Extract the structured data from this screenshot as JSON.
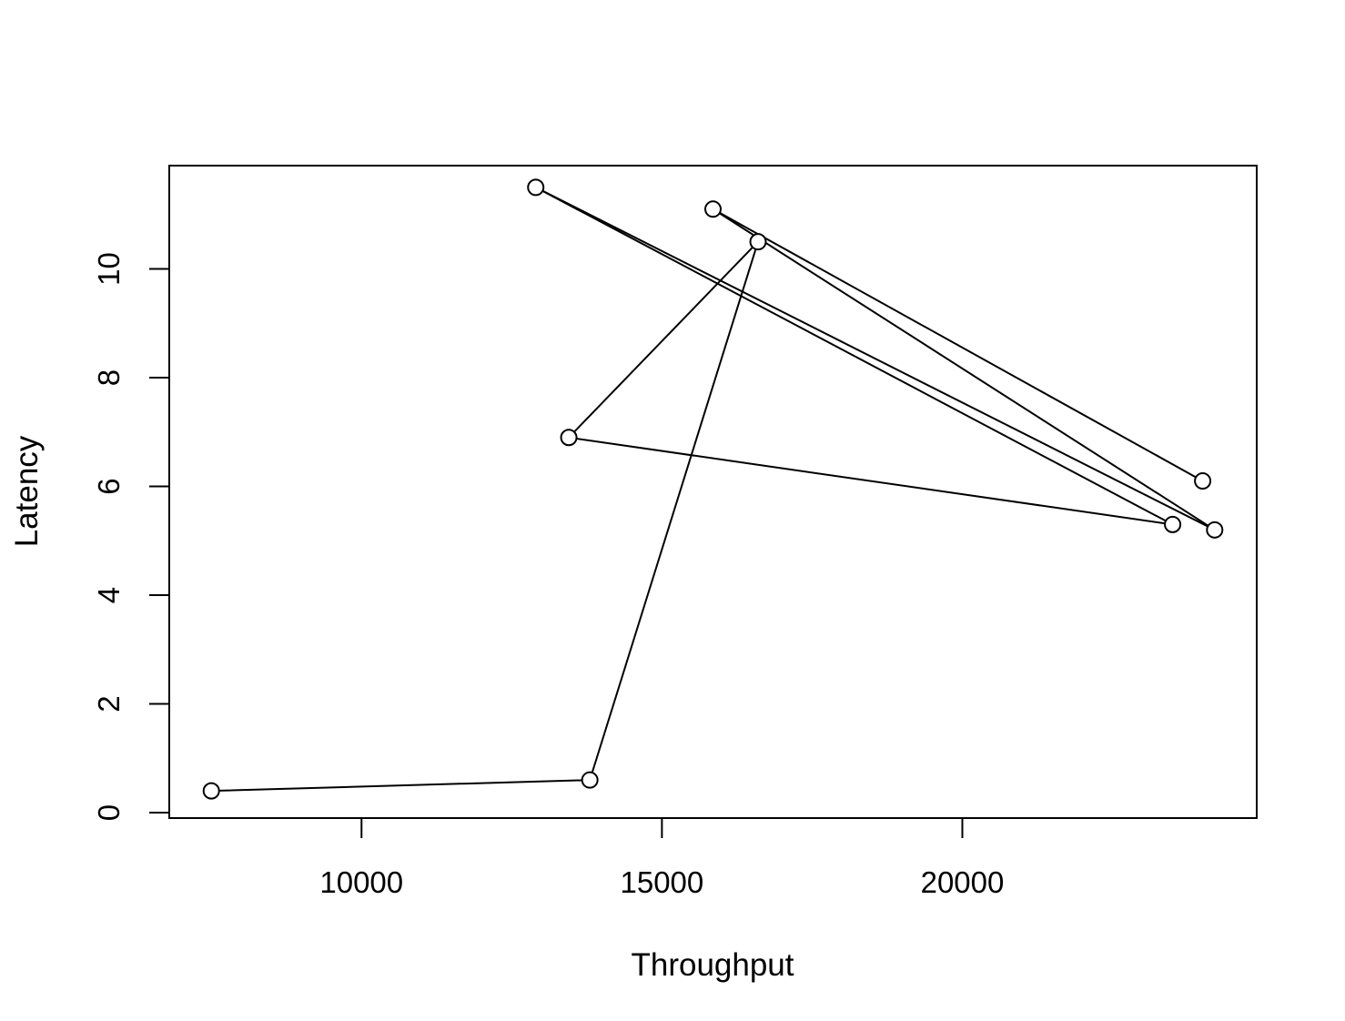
{
  "chart_data": {
    "type": "line",
    "title": "",
    "xlabel": "Throughput",
    "ylabel": "Latency",
    "xlim": [
      6800,
      24900
    ],
    "ylim": [
      -0.1,
      11.9
    ],
    "x_ticks": [
      10000,
      15000,
      20000
    ],
    "y_ticks": [
      0,
      2,
      4,
      6,
      8,
      10
    ],
    "grid": false,
    "legend": "none",
    "markers": "open-circle",
    "line_color": "#000000",
    "series": [
      {
        "points": [
          {
            "x": 7500,
            "y": 0.4
          },
          {
            "x": 13800,
            "y": 0.6
          },
          {
            "x": 16600,
            "y": 10.5
          },
          {
            "x": 13450,
            "y": 6.9
          },
          {
            "x": 23500,
            "y": 5.3
          },
          {
            "x": 12900,
            "y": 11.5
          },
          {
            "x": 24200,
            "y": 5.2
          },
          {
            "x": 15850,
            "y": 11.1
          },
          {
            "x": 24000,
            "y": 6.1
          }
        ]
      }
    ]
  }
}
